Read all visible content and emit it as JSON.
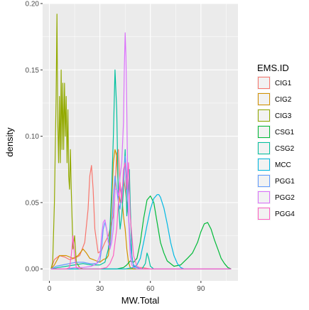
{
  "chart_data": {
    "type": "density",
    "xlabel": "MW.Total",
    "ylabel": "density",
    "xlim": [
      -4,
      112
    ],
    "ylim": [
      -0.009,
      0.2
    ],
    "x_ticks": [
      0,
      30,
      60,
      90
    ],
    "y_ticks": [
      0.0,
      0.05,
      0.1,
      0.15,
      0.2
    ],
    "x_tick_labels": [
      "0",
      "30",
      "60",
      "90"
    ],
    "y_tick_labels": [
      "0.00",
      "0.05",
      "0.10",
      "0.15",
      "0.20"
    ],
    "grid": true,
    "legend_title": "EMS.ID",
    "legend_position": "right",
    "series": [
      {
        "name": "CIG1",
        "color": "#F8766D",
        "x": [
          1,
          3,
          6,
          9,
          12,
          15,
          18,
          21,
          23,
          24,
          25,
          26,
          27,
          29,
          31,
          33,
          35,
          36,
          37,
          38,
          39,
          40,
          41,
          42,
          43,
          44,
          45,
          46,
          47,
          48,
          49,
          50,
          52,
          55,
          60,
          70,
          80,
          90,
          100,
          108
        ],
        "y": [
          0.0,
          0.007,
          0.01,
          0.009,
          0.007,
          0.008,
          0.01,
          0.02,
          0.045,
          0.07,
          0.078,
          0.06,
          0.03,
          0.012,
          0.014,
          0.02,
          0.025,
          0.03,
          0.035,
          0.04,
          0.06,
          0.087,
          0.09,
          0.06,
          0.055,
          0.07,
          0.06,
          0.05,
          0.04,
          0.02,
          0.008,
          0.003,
          0.001,
          0.001,
          0.0,
          0.0,
          0.0,
          0.0,
          0.0,
          0.0
        ]
      },
      {
        "name": "CIG2",
        "color": "#D39200",
        "x": [
          1,
          3,
          6,
          10,
          14,
          17,
          20,
          22,
          24,
          26,
          28,
          30,
          32,
          34,
          35,
          36,
          37,
          38,
          39,
          40,
          41,
          42,
          43,
          44,
          45,
          46,
          47,
          48,
          50,
          52,
          55,
          60,
          70,
          80,
          90,
          100,
          108
        ],
        "y": [
          0.0,
          0.003,
          0.01,
          0.01,
          0.008,
          0.01,
          0.015,
          0.012,
          0.008,
          0.007,
          0.006,
          0.005,
          0.007,
          0.008,
          0.01,
          0.02,
          0.05,
          0.08,
          0.09,
          0.085,
          0.06,
          0.05,
          0.055,
          0.04,
          0.03,
          0.015,
          0.005,
          0.001,
          0.0,
          0.0,
          0.0,
          0.0,
          0.0,
          0.0,
          0.0,
          0.0,
          0.0
        ]
      },
      {
        "name": "CIG3",
        "color": "#93AA00",
        "x": [
          1,
          2,
          3,
          4,
          4.5,
          5,
          5.5,
          6,
          6.5,
          7,
          7.5,
          8,
          8.5,
          9,
          9.5,
          10,
          10.5,
          11,
          11.5,
          12,
          12.5,
          13,
          14,
          15,
          16,
          18,
          20,
          25,
          30,
          40,
          50,
          60,
          80,
          100,
          108
        ],
        "y": [
          0.0,
          0.005,
          0.05,
          0.13,
          0.192,
          0.11,
          0.08,
          0.13,
          0.08,
          0.15,
          0.09,
          0.14,
          0.09,
          0.14,
          0.1,
          0.13,
          0.08,
          0.12,
          0.07,
          0.06,
          0.09,
          0.06,
          0.015,
          0.025,
          0.005,
          0.001,
          0.0,
          0.0,
          0.0,
          0.0,
          0.0,
          0.0,
          0.0,
          0.0,
          0.0
        ]
      },
      {
        "name": "CSG1",
        "color": "#00BA38",
        "x": [
          1,
          10,
          20,
          30,
          40,
          44,
          46,
          48,
          50,
          52,
          54,
          56,
          58,
          60,
          62,
          64,
          66,
          68,
          70,
          74,
          78,
          82,
          85,
          88,
          90,
          92,
          94,
          96,
          98,
          100,
          102,
          104,
          106,
          108
        ],
        "y": [
          0.0,
          0.0,
          0.0,
          0.0,
          0.0,
          0.001,
          0.003,
          0.006,
          0.005,
          0.008,
          0.02,
          0.038,
          0.052,
          0.055,
          0.05,
          0.035,
          0.02,
          0.012,
          0.006,
          0.002,
          0.003,
          0.008,
          0.012,
          0.02,
          0.028,
          0.034,
          0.035,
          0.03,
          0.022,
          0.015,
          0.008,
          0.004,
          0.001,
          0.0
        ]
      },
      {
        "name": "CSG2",
        "color": "#00C19F",
        "x": [
          1,
          5,
          10,
          15,
          20,
          25,
          30,
          33,
          35,
          36,
          37,
          38,
          39,
          40,
          41,
          42,
          43,
          44,
          45,
          46,
          47,
          47.5,
          48,
          48.5,
          49,
          50,
          52,
          55,
          57,
          58,
          59,
          60,
          62,
          66,
          70,
          80,
          90,
          100,
          108
        ],
        "y": [
          0.0,
          0.001,
          0.002,
          0.003,
          0.004,
          0.003,
          0.003,
          0.005,
          0.015,
          0.03,
          0.06,
          0.1,
          0.15,
          0.12,
          0.05,
          0.03,
          0.04,
          0.06,
          0.09,
          0.04,
          0.06,
          0.075,
          0.05,
          0.03,
          0.01,
          0.002,
          0.001,
          0.0,
          0.004,
          0.012,
          0.008,
          0.002,
          0.0,
          0.0,
          0.0,
          0.0,
          0.0,
          0.0,
          0.0
        ]
      },
      {
        "name": "MCC",
        "color": "#00B9E3",
        "x": [
          1,
          5,
          10,
          20,
          30,
          40,
          45,
          50,
          52,
          54,
          56,
          58,
          60,
          62,
          64,
          65,
          66,
          68,
          70,
          72,
          74,
          76,
          78,
          80,
          85,
          90,
          100,
          108
        ],
        "y": [
          0.0,
          0.0,
          0.0,
          0.0,
          0.0,
          0.0,
          0.0,
          0.001,
          0.003,
          0.008,
          0.02,
          0.033,
          0.045,
          0.053,
          0.056,
          0.056,
          0.054,
          0.046,
          0.034,
          0.02,
          0.01,
          0.004,
          0.001,
          0.0,
          0.0,
          0.0,
          0.0,
          0.0
        ]
      },
      {
        "name": "PGG1",
        "color": "#619CFF",
        "x": [
          1,
          4,
          8,
          12,
          16,
          20,
          24,
          28,
          30,
          31,
          32,
          33,
          34,
          35,
          36,
          37,
          38,
          39,
          40,
          41,
          42,
          43,
          44,
          45,
          46,
          47,
          48,
          49,
          50,
          52,
          55,
          60,
          70,
          80,
          90,
          100,
          108
        ],
        "y": [
          0.0,
          0.002,
          0.003,
          0.004,
          0.005,
          0.005,
          0.004,
          0.004,
          0.006,
          0.015,
          0.03,
          0.035,
          0.03,
          0.02,
          0.015,
          0.03,
          0.055,
          0.07,
          0.06,
          0.05,
          0.045,
          0.06,
          0.065,
          0.085,
          0.07,
          0.04,
          0.02,
          0.008,
          0.003,
          0.001,
          0.0,
          0.0,
          0.0,
          0.0,
          0.0,
          0.0,
          0.0
        ]
      },
      {
        "name": "PGG2",
        "color": "#DB72FB",
        "x": [
          1,
          5,
          10,
          15,
          20,
          25,
          28,
          30,
          31,
          32,
          33,
          34,
          35,
          36,
          37,
          38,
          39,
          40,
          41,
          42,
          43,
          44,
          44.5,
          45,
          45.5,
          46,
          46.5,
          47,
          48,
          49,
          50,
          52,
          55,
          60,
          70,
          80,
          90,
          100,
          108
        ],
        "y": [
          0.0,
          0.0,
          0.0,
          0.001,
          0.001,
          0.002,
          0.004,
          0.01,
          0.025,
          0.035,
          0.037,
          0.03,
          0.02,
          0.015,
          0.02,
          0.03,
          0.06,
          0.06,
          0.055,
          0.07,
          0.08,
          0.11,
          0.15,
          0.178,
          0.16,
          0.12,
          0.07,
          0.04,
          0.01,
          0.003,
          0.001,
          0.0,
          0.0,
          0.0,
          0.0,
          0.0,
          0.0,
          0.0,
          0.0
        ]
      },
      {
        "name": "PGG4",
        "color": "#FF61C3",
        "x": [
          1,
          5,
          10,
          12,
          13,
          14,
          15,
          16,
          18,
          22,
          26,
          30,
          34,
          36,
          38,
          39,
          40,
          41,
          42,
          43,
          44,
          45,
          46,
          47,
          48,
          50,
          52,
          55,
          60,
          70,
          80,
          90,
          100,
          108
        ],
        "y": [
          0.0,
          0.0,
          0.0,
          0.001,
          0.01,
          0.025,
          0.01,
          0.001,
          0.0,
          0.0,
          0.0,
          0.0,
          0.001,
          0.004,
          0.01,
          0.02,
          0.03,
          0.05,
          0.065,
          0.05,
          0.075,
          0.08,
          0.06,
          0.08,
          0.04,
          0.01,
          0.002,
          0.0,
          0.0,
          0.0,
          0.0,
          0.0,
          0.0,
          0.0
        ]
      }
    ]
  }
}
